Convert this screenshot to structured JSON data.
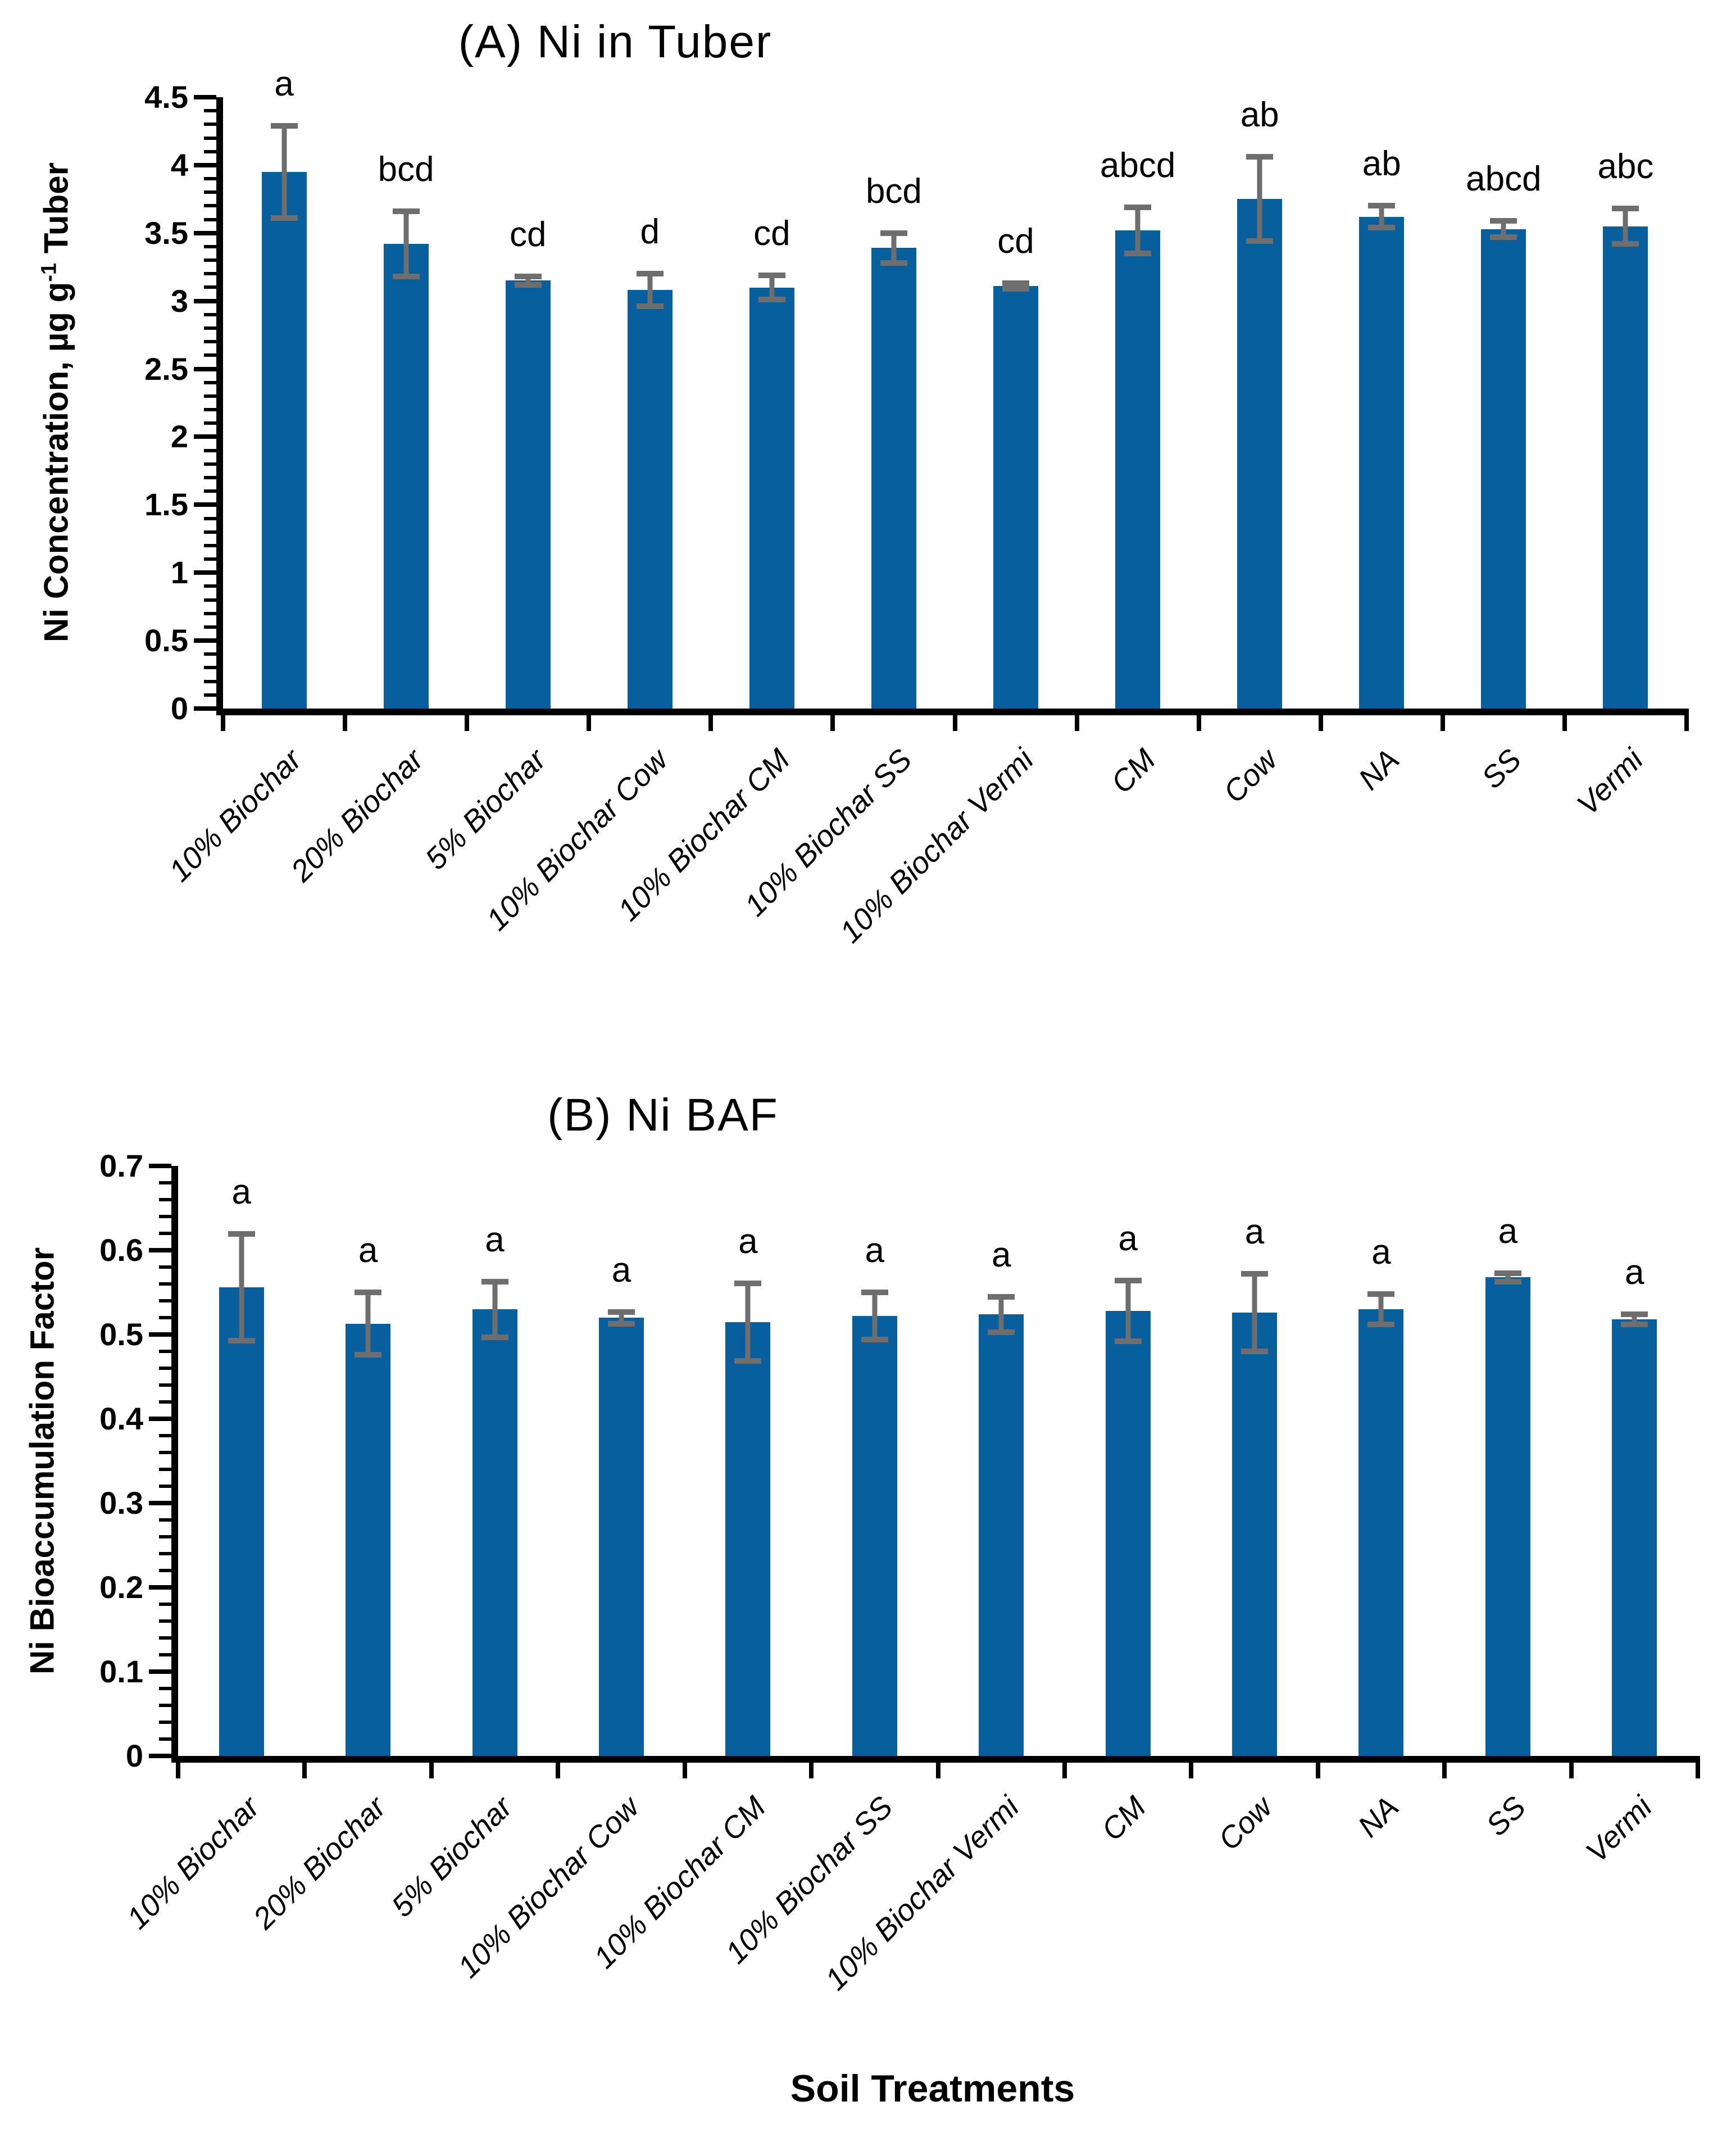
{
  "figure_background": "#FFFFFF",
  "x_axis_title": "Soil Treatments",
  "chart_data": [
    {
      "type": "bar",
      "panel": "A",
      "title": "(A) Ni in Tuber",
      "ylabel": "Ni Concentration, µg g-1 Tuber",
      "ylabel_parts": {
        "pre": "Ni Concentration, µg g",
        "sup": "-1",
        "post": " Tuber"
      },
      "ylim": [
        0,
        4.5
      ],
      "ytick_step": 0.5,
      "minor_tick_step": 0.1,
      "ytick_labels": [
        "0",
        "0.5",
        "1",
        "1.5",
        "2",
        "2.5",
        "3",
        "3.5",
        "4",
        "4.5"
      ],
      "categories": [
        "10% Biochar",
        "20% Biochar",
        "5% Biochar",
        "10% Biochar Cow",
        "10% Biochar CM",
        "10% Biochar SS",
        "10% Biochar Vermi",
        "CM",
        "Cow",
        "NA",
        "SS",
        "Vermi"
      ],
      "values": [
        3.95,
        3.42,
        3.15,
        3.08,
        3.1,
        3.39,
        3.11,
        3.52,
        3.75,
        3.62,
        3.53,
        3.55
      ],
      "errors": [
        0.34,
        0.24,
        0.03,
        0.12,
        0.09,
        0.11,
        0.02,
        0.17,
        0.31,
        0.08,
        0.06,
        0.13
      ],
      "sig_letters": [
        "a",
        "bcd",
        "cd",
        "d",
        "cd",
        "bcd",
        "cd",
        "abcd",
        "ab",
        "ab",
        "abcd",
        "abc"
      ],
      "bar_color": "#075F9E",
      "error_color": "#6E6E6E",
      "grid": "off",
      "legend": "none"
    },
    {
      "type": "bar",
      "panel": "B",
      "title": "(B) Ni BAF",
      "ylabel": "Ni Bioaccumulation Factor",
      "ylabel_parts": {
        "pre": "Ni Bioaccumulation Factor",
        "sup": "",
        "post": ""
      },
      "ylim": [
        0,
        0.7
      ],
      "ytick_step": 0.1,
      "minor_tick_step": 0.02,
      "ytick_labels": [
        "0",
        "0.1",
        "0.2",
        "0.3",
        "0.4",
        "0.5",
        "0.6",
        "0.7"
      ],
      "categories": [
        "10% Biochar",
        "20% Biochar",
        "5% Biochar",
        "10% Biochar Cow",
        "10% Biochar CM",
        "10% Biochar SS",
        "10% Biochar Vermi",
        "CM",
        "Cow",
        "NA",
        "SS",
        "Vermi"
      ],
      "values": [
        0.556,
        0.513,
        0.53,
        0.52,
        0.515,
        0.522,
        0.524,
        0.528,
        0.526,
        0.53,
        0.568,
        0.518
      ],
      "errors": [
        0.063,
        0.037,
        0.033,
        0.007,
        0.046,
        0.028,
        0.021,
        0.036,
        0.046,
        0.018,
        0.005,
        0.006
      ],
      "sig_letters": [
        "a",
        "a",
        "a",
        "a",
        "a",
        "a",
        "a",
        "a",
        "a",
        "a",
        "a",
        "a"
      ],
      "bar_color": "#075F9E",
      "error_color": "#6E6E6E",
      "grid": "off",
      "legend": "none"
    }
  ]
}
